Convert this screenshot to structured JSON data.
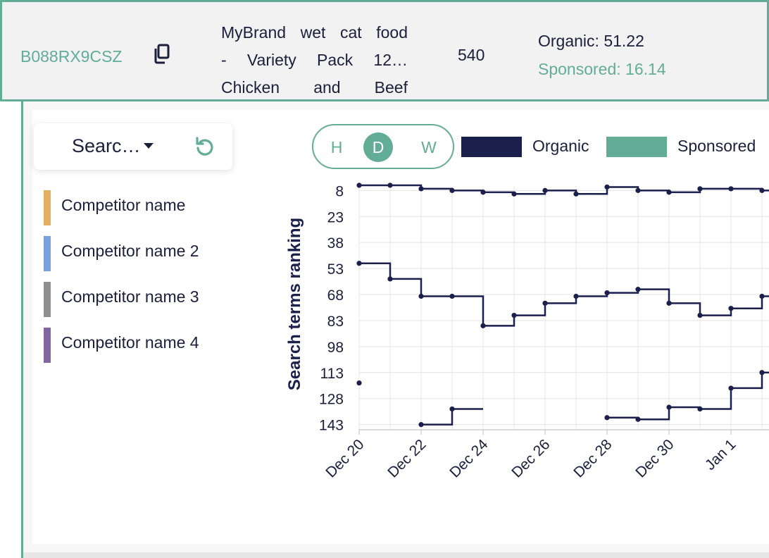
{
  "header": {
    "asin": "B088RX9CSZ",
    "product_lines": [
      "MyBrand wet cat food",
      "- Variety Pack 12…",
      "Chicken and Beef"
    ],
    "count": "540",
    "organic": "Organic: 51.22",
    "sponsored": "Sponsored: 16.14"
  },
  "controls": {
    "search_label": "Searc…",
    "granularity": [
      {
        "label": "H",
        "active": false
      },
      {
        "label": "D",
        "active": true
      },
      {
        "label": "W",
        "active": false
      }
    ]
  },
  "competitors": [
    {
      "name": "Competitor name",
      "color": "#e3ad62"
    },
    {
      "name": "Competitor name 2",
      "color": "#7a9fde"
    },
    {
      "name": "Competitor name 3",
      "color": "#8f8f8f"
    },
    {
      "name": "Competitor name 4",
      "color": "#8366a0"
    }
  ],
  "colors": {
    "accent": "#63ad96",
    "organic": "#1b1f4c",
    "sponsored": "#63ad96"
  },
  "chart_data": {
    "type": "line",
    "interpolation": "step-after",
    "ylabel": "Search terms ranking",
    "y_inverted": true,
    "yticks": [
      8,
      23,
      38,
      53,
      68,
      83,
      98,
      113,
      128,
      143
    ],
    "ylim": [
      5,
      146
    ],
    "xlim": [
      "Dec 20",
      "Jan 2"
    ],
    "xticks": [
      "Dec 20",
      "Dec 22",
      "Dec 24",
      "Dec 26",
      "Dec 28",
      "Dec 30",
      "Jan 1"
    ],
    "grid": true,
    "legend": [
      {
        "name": "Organic",
        "color": "#1b1f4c"
      },
      {
        "name": "Sponsored",
        "color": "#63ad96"
      }
    ],
    "series": [
      {
        "name": "Organic",
        "points": [
          [
            "Dec 20",
            5
          ],
          [
            "Dec 21",
            5
          ],
          [
            "Dec 22",
            7
          ],
          [
            "Dec 23",
            8
          ],
          [
            "Dec 24",
            9
          ],
          [
            "Dec 25",
            10
          ],
          [
            "Dec 26",
            8
          ],
          [
            "Dec 27",
            10
          ],
          [
            "Dec 28",
            6
          ],
          [
            "Dec 29",
            8
          ],
          [
            "Dec 30",
            9
          ],
          [
            "Dec 31",
            7
          ],
          [
            "Jan 1",
            7
          ],
          [
            "Jan 2",
            8
          ]
        ]
      },
      {
        "name": "Organic",
        "points": [
          [
            "Dec 20",
            50
          ],
          [
            "Dec 21",
            59
          ],
          [
            "Dec 22",
            69
          ],
          [
            "Dec 23",
            69
          ],
          [
            "Dec 24",
            86
          ],
          [
            "Dec 25",
            80
          ],
          [
            "Dec 26",
            73
          ],
          [
            "Dec 27",
            69
          ],
          [
            "Dec 28",
            67
          ],
          [
            "Dec 29",
            65
          ],
          [
            "Dec 30",
            73
          ],
          [
            "Dec 31",
            80
          ],
          [
            "Jan 1",
            76
          ],
          [
            "Jan 2",
            69
          ]
        ]
      },
      {
        "name": "Organic",
        "points": [
          [
            "Dec 20",
            119
          ],
          [
            "Dec 22",
            143
          ],
          [
            "Dec 23",
            134
          ],
          [
            "Dec 28",
            139
          ],
          [
            "Dec 29",
            140
          ],
          [
            "Dec 30",
            133
          ],
          [
            "Dec 31",
            134
          ],
          [
            "Jan 1",
            122
          ],
          [
            "Jan 2",
            113
          ]
        ],
        "segments": [
          [
            0
          ],
          [
            1,
            2
          ],
          [
            3,
            4,
            5,
            6,
            7,
            8
          ]
        ]
      }
    ]
  }
}
